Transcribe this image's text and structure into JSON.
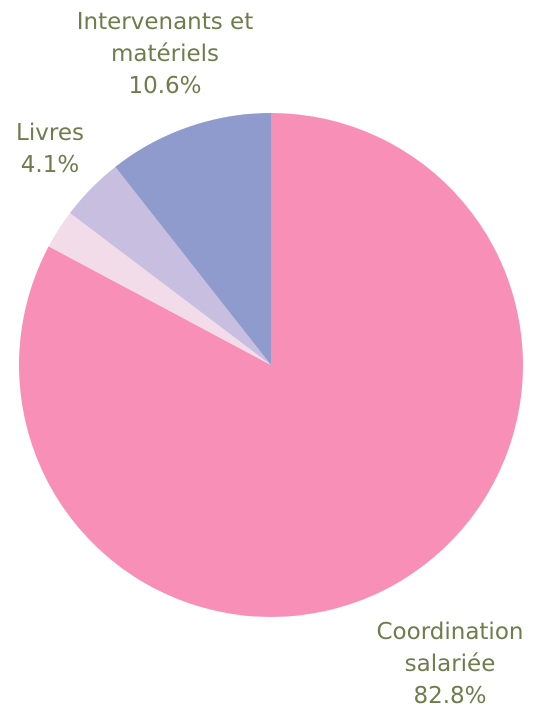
{
  "chart_data": {
    "type": "pie",
    "categories": [
      "Coordination salariée",
      null,
      "Livres",
      "Intervenants et matériels"
    ],
    "values": [
      82.8,
      2.5,
      4.1,
      10.6
    ],
    "value_labels": [
      "82.8%",
      null,
      "4.1%",
      "10.6%"
    ],
    "colors": [
      "#f78fb7",
      "#f3dcea",
      "#c8bfe0",
      "#8f9bcc"
    ]
  }
}
